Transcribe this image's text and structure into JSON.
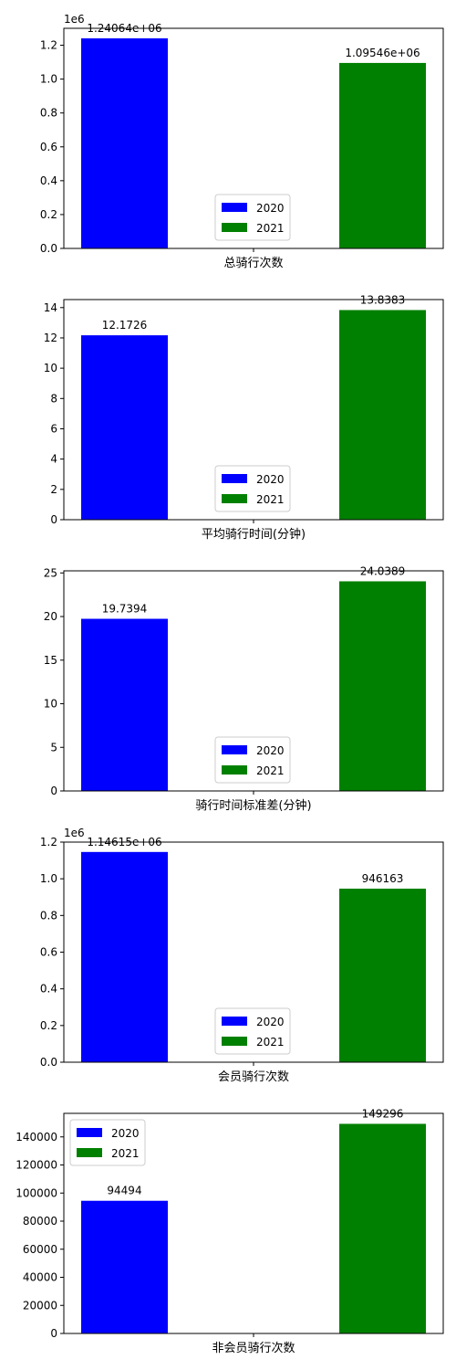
{
  "chart_data": [
    {
      "type": "bar",
      "xlabel": "总骑行次数",
      "series": [
        {
          "name": "2020",
          "color": "#0000ff",
          "value": 1240640,
          "data_label": "1.24064e+06"
        },
        {
          "name": "2021",
          "color": "#008000",
          "value": 1095460,
          "data_label": "1.09546e+06"
        }
      ],
      "ylim": [
        0,
        1300000
      ],
      "yticks": [
        0,
        200000,
        400000,
        600000,
        800000,
        1000000,
        1200000
      ],
      "ytick_labels": [
        "0.0",
        "0.2",
        "0.4",
        "0.6",
        "0.8",
        "1.0",
        "1.2"
      ],
      "offset_text": "1e6",
      "legend_loc": "lower-center"
    },
    {
      "type": "bar",
      "xlabel": "平均骑行时间(分钟)",
      "series": [
        {
          "name": "2020",
          "color": "#0000ff",
          "value": 12.1726,
          "data_label": "12.1726"
        },
        {
          "name": "2021",
          "color": "#008000",
          "value": 13.8383,
          "data_label": "13.8383"
        }
      ],
      "ylim": [
        0,
        14.53
      ],
      "yticks": [
        0,
        2,
        4,
        6,
        8,
        10,
        12,
        14
      ],
      "ytick_labels": [
        "0",
        "2",
        "4",
        "6",
        "8",
        "10",
        "12",
        "14"
      ],
      "legend_loc": "lower-center"
    },
    {
      "type": "bar",
      "xlabel": "骑行时间标准差(分钟)",
      "series": [
        {
          "name": "2020",
          "color": "#0000ff",
          "value": 19.7394,
          "data_label": "19.7394"
        },
        {
          "name": "2021",
          "color": "#008000",
          "value": 24.0389,
          "data_label": "24.0389"
        }
      ],
      "ylim": [
        0,
        25.24
      ],
      "yticks": [
        0,
        5,
        10,
        15,
        20,
        25
      ],
      "ytick_labels": [
        "0",
        "5",
        "10",
        "15",
        "20",
        "25"
      ],
      "legend_loc": "lower-center"
    },
    {
      "type": "bar",
      "xlabel": "会员骑行次数",
      "series": [
        {
          "name": "2020",
          "color": "#0000ff",
          "value": 1146150,
          "data_label": "1.14615e+06"
        },
        {
          "name": "2021",
          "color": "#008000",
          "value": 946163,
          "data_label": "946163"
        }
      ],
      "ylim": [
        0,
        1200000
      ],
      "yticks": [
        0,
        200000,
        400000,
        600000,
        800000,
        1000000,
        1200000
      ],
      "ytick_labels": [
        "0.0",
        "0.2",
        "0.4",
        "0.6",
        "0.8",
        "1.0",
        "1.2"
      ],
      "offset_text": "1e6",
      "legend_loc": "lower-center"
    },
    {
      "type": "bar",
      "xlabel": "非会员骑行次数",
      "series": [
        {
          "name": "2020",
          "color": "#0000ff",
          "value": 94494,
          "data_label": "94494"
        },
        {
          "name": "2021",
          "color": "#008000",
          "value": 149296,
          "data_label": "149296"
        }
      ],
      "ylim": [
        0,
        156760
      ],
      "yticks": [
        0,
        20000,
        40000,
        60000,
        80000,
        100000,
        120000,
        140000
      ],
      "ytick_labels": [
        "0",
        "20000",
        "40000",
        "60000",
        "80000",
        "100000",
        "120000",
        "140000"
      ],
      "legend_loc": "upper-left"
    }
  ]
}
